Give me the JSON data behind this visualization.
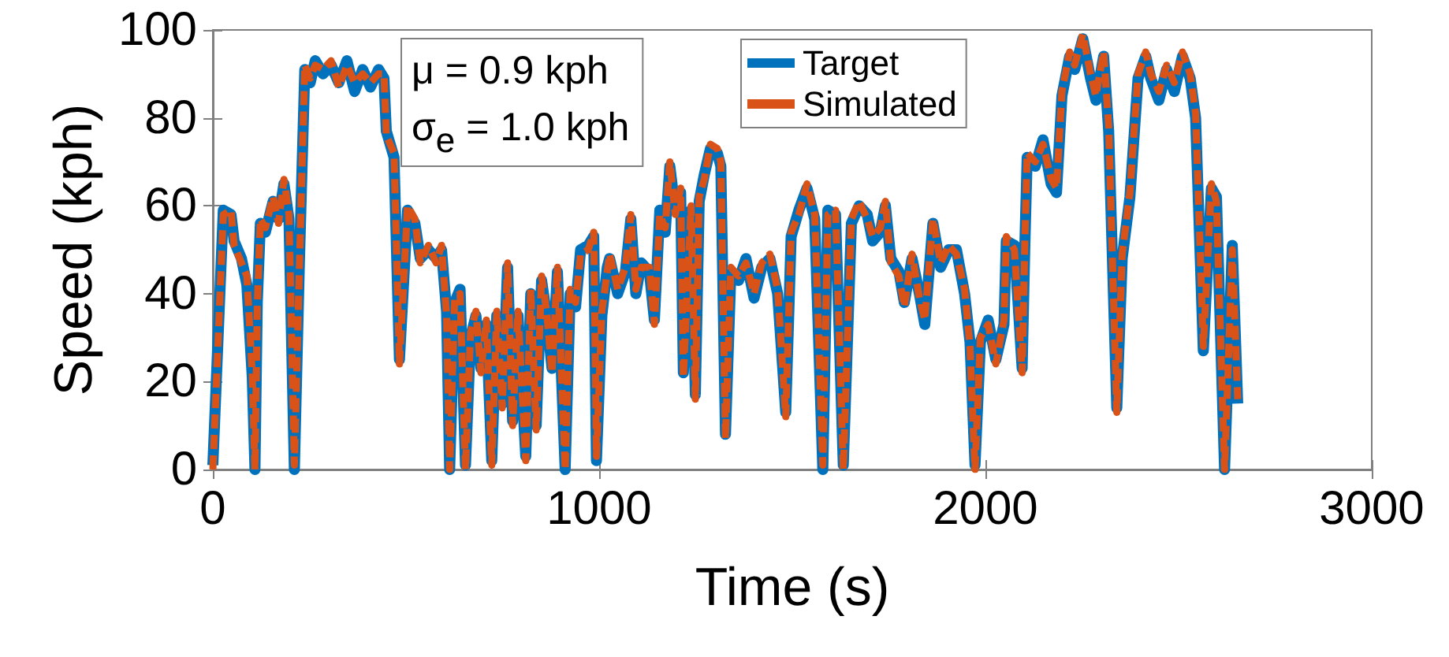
{
  "chart_data": {
    "type": "line",
    "xlabel": "Time (s)",
    "ylabel": "Speed (kph)",
    "xlim": [
      0,
      3000
    ],
    "xticks": [
      0,
      1000,
      2000,
      3000
    ],
    "ylim": [
      0,
      100
    ],
    "yticks": [
      0,
      20,
      40,
      60,
      80,
      100
    ],
    "grid": false,
    "legend": "top",
    "marker": "none",
    "annotations": [
      "μ = 0.9 kph",
      "σ$_{e}$ = 1.0 kph"
    ],
    "x": [
      0,
      27,
      47,
      55,
      74,
      88,
      102,
      109,
      115,
      123,
      136,
      156,
      170,
      184,
      197,
      211,
      224,
      238,
      252,
      265,
      285,
      306,
      326,
      347,
      367,
      388,
      408,
      429,
      443,
      449,
      469,
      483,
      504,
      523,
      537,
      558,
      578,
      592,
      605,
      613,
      626,
      640,
      654,
      667,
      681,
      694,
      708,
      722,
      735,
      749,
      763,
      776,
      790,
      810,
      823,
      837,
      851,
      864,
      878,
      892,
      912,
      925,
      939,
      952,
      972,
      986,
      993,
      1007,
      1021,
      1027,
      1048,
      1068,
      1082,
      1095,
      1109,
      1130,
      1143,
      1157,
      1171,
      1183,
      1197,
      1211,
      1218,
      1238,
      1249,
      1259,
      1272,
      1288,
      1306,
      1315,
      1327,
      1341,
      1361,
      1380,
      1401,
      1421,
      1442,
      1462,
      1483,
      1497,
      1517,
      1538,
      1558,
      1579,
      1592,
      1612,
      1632,
      1653,
      1673,
      1694,
      1708,
      1728,
      1741,
      1755,
      1776,
      1790,
      1810,
      1829,
      1843,
      1864,
      1884,
      1905,
      1925,
      1946,
      1960,
      1973,
      1987,
      2007,
      2027,
      2048,
      2054,
      2075,
      2095,
      2102,
      2108,
      2129,
      2149,
      2170,
      2184,
      2198,
      2218,
      2231,
      2252,
      2272,
      2286,
      2306,
      2319,
      2340,
      2354,
      2374,
      2395,
      2415,
      2428,
      2449,
      2469,
      2489,
      2510,
      2530,
      2544,
      2564,
      2585,
      2598,
      2619,
      2639,
      2653
    ],
    "series": [
      {
        "name": "Target",
        "color": "#0072bd",
        "line_style": "solid",
        "values": [
          1,
          59,
          58,
          52,
          48,
          42,
          21,
          0,
          38,
          56,
          54,
          61,
          57,
          65,
          57,
          0,
          47,
          91,
          88,
          93,
          90,
          92,
          88,
          93,
          86,
          91,
          87,
          91,
          89,
          77,
          71,
          25,
          59,
          56,
          48,
          50,
          48,
          50,
          36,
          0,
          38,
          41,
          1,
          30,
          35,
          23,
          33,
          2,
          35,
          15,
          46,
          11,
          35,
          3,
          40,
          10,
          43,
          35,
          23,
          45,
          0,
          40,
          37,
          50,
          51,
          53,
          2,
          35,
          46,
          48,
          40,
          45,
          57,
          40,
          47,
          45,
          34,
          59,
          54,
          69,
          59,
          63,
          22,
          59,
          17,
          61,
          67,
          73,
          72,
          69,
          8,
          45,
          43,
          48,
          39,
          46,
          48,
          40,
          13,
          53,
          59,
          64,
          57,
          0,
          59,
          58,
          1,
          56,
          60,
          58,
          52,
          54,
          60,
          48,
          45,
          38,
          48,
          40,
          33,
          56,
          46,
          50,
          50,
          40,
          29,
          1,
          29,
          34,
          25,
          33,
          52,
          51,
          23,
          51,
          71,
          69,
          75,
          65,
          63,
          85,
          94,
          91,
          98,
          89,
          84,
          94,
          77,
          14,
          48,
          62,
          89,
          94,
          89,
          84,
          91,
          86,
          94,
          89,
          80,
          27,
          64,
          62,
          0,
          51,
          15
        ]
      },
      {
        "name": "Simulated",
        "color": "#d95319",
        "line_style": "dashed",
        "values": [
          0,
          58,
          59,
          51,
          47,
          44,
          22,
          0,
          37,
          57,
          55,
          62,
          56,
          66,
          58,
          1,
          46,
          92,
          89,
          92,
          91,
          93,
          87,
          92,
          88,
          90,
          88,
          90,
          90,
          76,
          72,
          24,
          60,
          57,
          47,
          51,
          47,
          51,
          35,
          0,
          39,
          40,
          0,
          31,
          36,
          22,
          34,
          1,
          36,
          14,
          47,
          10,
          36,
          2,
          41,
          9,
          44,
          36,
          22,
          46,
          0,
          41,
          38,
          49,
          50,
          54,
          3,
          36,
          45,
          49,
          41,
          46,
          58,
          41,
          46,
          46,
          33,
          58,
          55,
          70,
          58,
          64,
          21,
          60,
          16,
          62,
          66,
          74,
          73,
          70,
          7,
          46,
          44,
          47,
          40,
          47,
          49,
          41,
          12,
          54,
          58,
          65,
          58,
          1,
          58,
          59,
          0,
          57,
          61,
          57,
          53,
          55,
          61,
          47,
          44,
          37,
          49,
          39,
          34,
          57,
          47,
          51,
          49,
          41,
          28,
          0,
          30,
          33,
          24,
          34,
          53,
          50,
          22,
          52,
          72,
          70,
          74,
          66,
          64,
          86,
          95,
          92,
          99,
          90,
          85,
          95,
          78,
          13,
          49,
          63,
          90,
          95,
          90,
          86,
          92,
          88,
          95,
          90,
          81,
          28,
          65,
          61,
          0,
          50,
          16
        ]
      }
    ]
  }
}
